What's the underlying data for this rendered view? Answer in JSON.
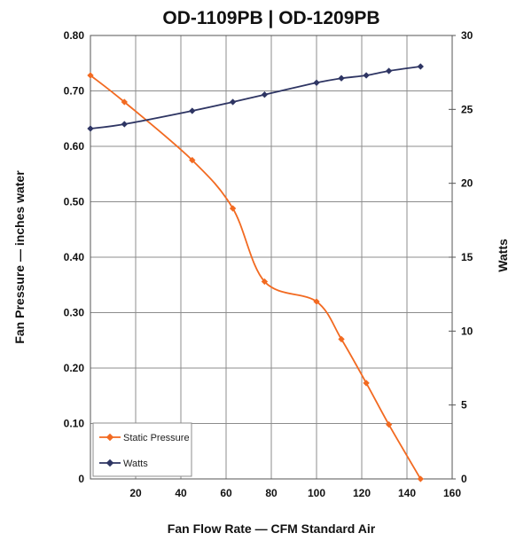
{
  "chart_data": {
    "type": "line",
    "title": "OD-1109PB | OD-1209PB",
    "xlabel": "Fan Flow Rate — CFM Standard Air",
    "ylabel": "Fan Pressure — inches water",
    "y2label": "Watts",
    "xlim": [
      0,
      160
    ],
    "ylim": [
      0,
      0.8
    ],
    "y2lim": [
      0,
      30
    ],
    "x_ticks": [
      "20",
      "40",
      "60",
      "80",
      "100",
      "120",
      "140",
      "160"
    ],
    "y_ticks": [
      "0",
      "0.10",
      "0.20",
      "0.30",
      "0.40",
      "0.50",
      "0.60",
      "0.70",
      "0.80"
    ],
    "y2_ticks": [
      "0",
      "5",
      "10",
      "15",
      "20",
      "25",
      "30"
    ],
    "grid": true,
    "legend_position": "bottom-left",
    "series": [
      {
        "name": "Static Pressure",
        "axis": "left",
        "color": "#f26a21",
        "x": [
          0,
          15,
          45,
          63,
          77,
          100,
          111,
          122,
          132,
          146
        ],
        "y": [
          0.728,
          0.68,
          0.575,
          0.488,
          0.356,
          0.32,
          0.252,
          0.173,
          0.098,
          0.0
        ]
      },
      {
        "name": "Watts",
        "axis": "right",
        "color": "#2e3563",
        "x": [
          0,
          15,
          45,
          63,
          77,
          100,
          111,
          122,
          132,
          146
        ],
        "y": [
          23.7,
          24.0,
          24.9,
          25.5,
          26.0,
          26.8,
          27.1,
          27.3,
          27.6,
          27.9
        ]
      }
    ]
  }
}
